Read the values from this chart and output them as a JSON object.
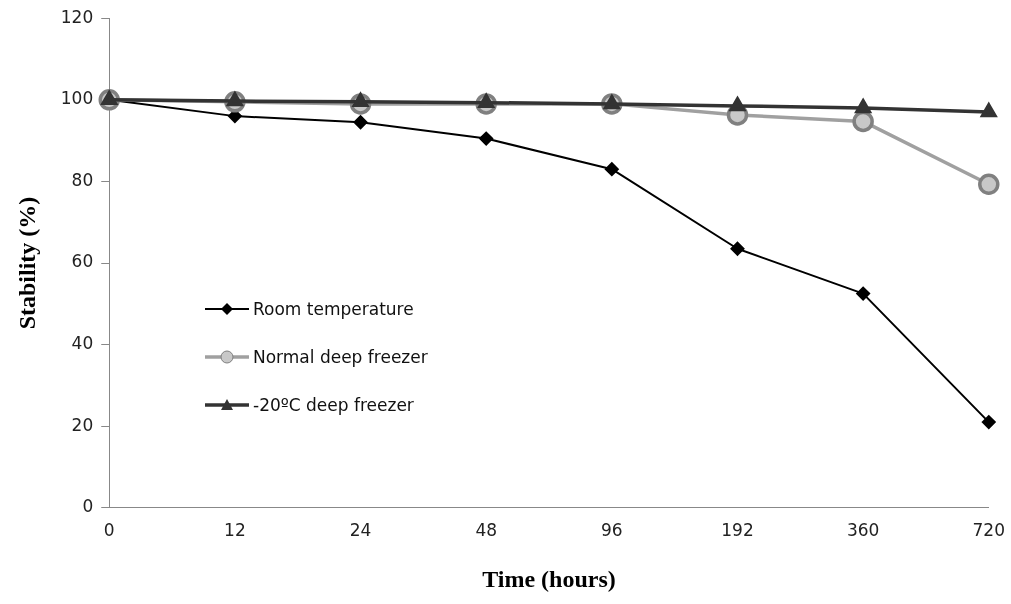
{
  "chart_data": {
    "type": "line",
    "xlabel": "Time (hours)",
    "ylabel": "Stability (%)",
    "categories": [
      "0",
      "12",
      "24",
      "48",
      "96",
      "192",
      "360",
      "720"
    ],
    "ylim": [
      0,
      120
    ],
    "yticks": [
      0,
      20,
      40,
      60,
      80,
      100,
      120
    ],
    "grid": false,
    "legend": "left",
    "series": [
      {
        "name": "Room temperature",
        "color": "#000000",
        "marker": "diamond",
        "values": [
          100,
          96,
          94.5,
          90.5,
          83,
          63.5,
          52.5,
          21
        ]
      },
      {
        "name": "Normal deep freezer",
        "color": "#a0a0a0",
        "marker": "circle",
        "values": [
          100,
          99.5,
          99,
          99,
          99,
          96.3,
          94.7,
          79.3
        ]
      },
      {
        "name": "-20ºC deep freezer",
        "color": "#333333",
        "marker": "triangle",
        "values": [
          100,
          99.7,
          99.5,
          99.3,
          99,
          98.5,
          98,
          97
        ]
      }
    ]
  }
}
